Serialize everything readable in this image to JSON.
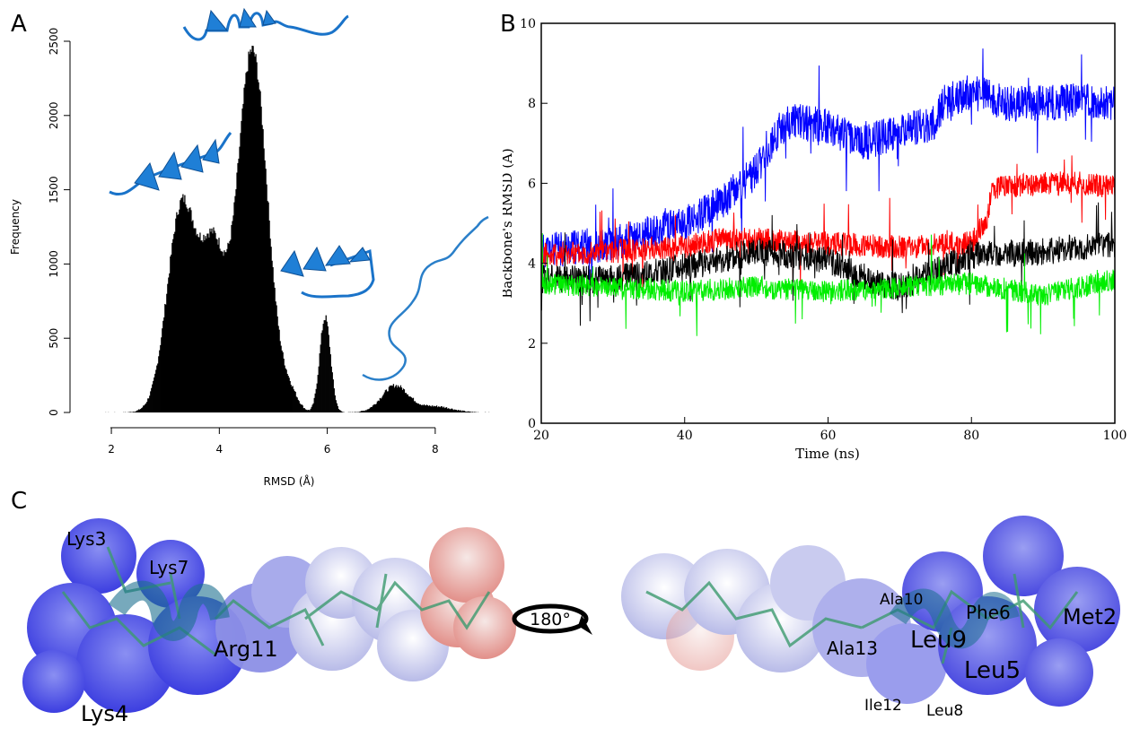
{
  "panels": {
    "a_letter": "A",
    "b_letter": "B",
    "c_letter": "C"
  },
  "chart_data": [
    {
      "type": "bar",
      "panel": "A",
      "xlabel": "RMSD (Å)",
      "ylabel": "Frequency",
      "xlim": [
        1.5,
        9.0
      ],
      "ylim": [
        0,
        2500
      ],
      "xticks": [
        2,
        4,
        6,
        8
      ],
      "yticks": [
        0,
        500,
        1000,
        1500,
        2000,
        2500
      ],
      "bar_color": "#000000",
      "peaks": [
        {
          "x": 3.3,
          "y": 1490
        },
        {
          "x": 3.75,
          "y": 1170
        },
        {
          "x": 4.6,
          "y": 2440
        },
        {
          "x": 5.95,
          "y": 640
        },
        {
          "x": 7.25,
          "y": 180
        }
      ]
    },
    {
      "type": "line",
      "panel": "B",
      "xlabel": "Time (ns)",
      "ylabel": "Backbone's RMSD (Å)",
      "xlim": [
        20,
        100
      ],
      "ylim": [
        0,
        10
      ],
      "xticks": [
        20,
        40,
        60,
        80,
        100
      ],
      "yticks": [
        0,
        2,
        4,
        6,
        8,
        10
      ],
      "series": [
        {
          "color": "#0000ff",
          "x": [
            20,
            30,
            40,
            45,
            50,
            53,
            55,
            60,
            65,
            70,
            75,
            76,
            80,
            85,
            90,
            95,
            100
          ],
          "values": [
            4.3,
            4.5,
            5.0,
            5.5,
            6.3,
            7.3,
            7.6,
            7.4,
            7.0,
            7.3,
            7.5,
            8.0,
            8.3,
            8.0,
            8.0,
            8.1,
            8.0
          ]
        },
        {
          "color": "#ff0000",
          "x": [
            20,
            30,
            40,
            45,
            50,
            60,
            70,
            80,
            82,
            83,
            90,
            95,
            100
          ],
          "values": [
            4.2,
            4.3,
            4.4,
            4.6,
            4.6,
            4.5,
            4.4,
            4.5,
            5.0,
            5.9,
            6.0,
            6.0,
            5.9
          ]
        },
        {
          "color": "#000000",
          "x": [
            20,
            30,
            40,
            50,
            60,
            65,
            70,
            75,
            80,
            90,
            100
          ],
          "values": [
            3.6,
            3.6,
            3.9,
            4.3,
            4.1,
            3.6,
            3.4,
            3.8,
            4.2,
            4.3,
            4.5
          ]
        },
        {
          "color": "#00ee00",
          "x": [
            20,
            30,
            40,
            50,
            60,
            70,
            80,
            90,
            100
          ],
          "values": [
            3.5,
            3.4,
            3.3,
            3.4,
            3.3,
            3.4,
            3.5,
            3.2,
            3.6
          ]
        }
      ]
    }
  ],
  "panel_c": {
    "rotation_label": "180°",
    "left_labels": [
      "Lys3",
      "Lys7",
      "Arg11",
      "Lys4"
    ],
    "right_labels": [
      "Ala10",
      "Phe6",
      "Met2",
      "Ala13",
      "Leu9",
      "Leu5",
      "Ile12",
      "Leu8"
    ]
  }
}
